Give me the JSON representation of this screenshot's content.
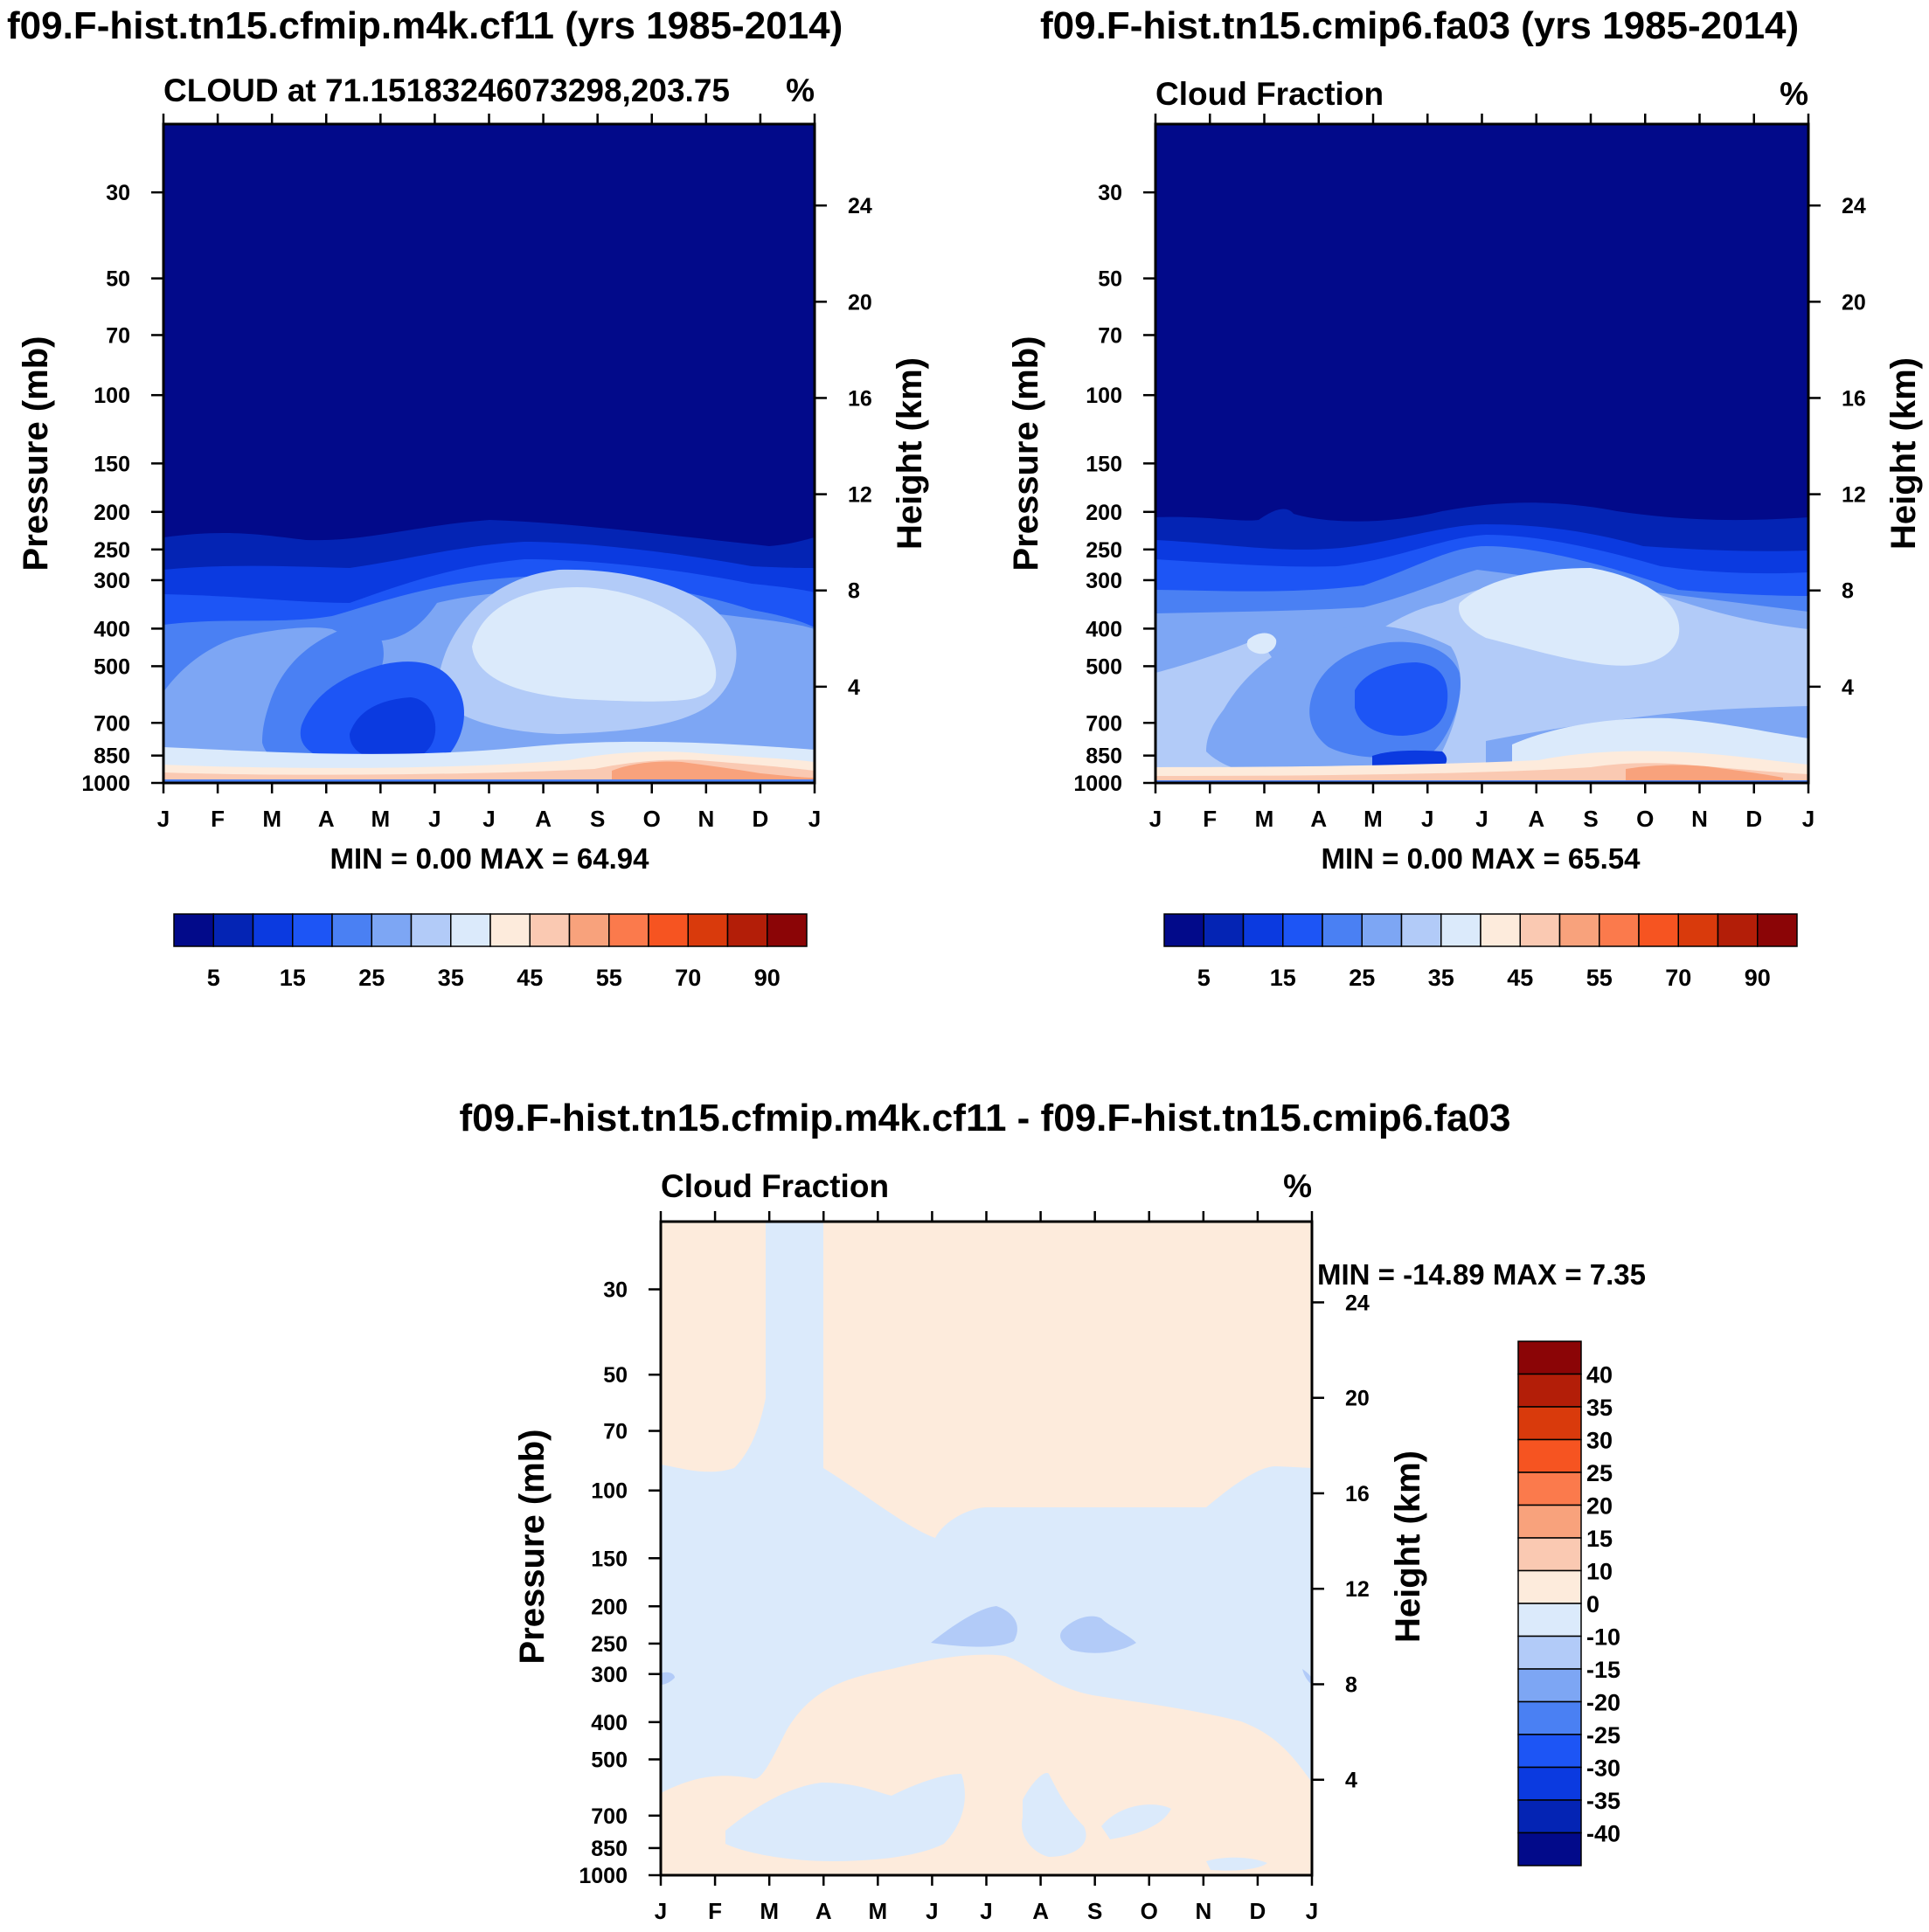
{
  "colors": {
    "scale": [
      "#020a8a",
      "#0424b4",
      "#0b3ae0",
      "#1d55f5",
      "#4a80f3",
      "#7da6f4",
      "#b2cbf8",
      "#dbeafb",
      "#fdebdc",
      "#fac9b2",
      "#f8a27c",
      "#fb7a4c",
      "#f65421",
      "#d93a0c",
      "#b31e08",
      "#8b0506"
    ],
    "diff_scale": [
      "#020a8a",
      "#0424b4",
      "#0b3ae0",
      "#1d55f5",
      "#4a80f3",
      "#7da6f4",
      "#b2cbf8",
      "#dbeafb",
      "#fdebdc",
      "#fac9b2",
      "#f8a27c",
      "#fb7a4c",
      "#f65421",
      "#d93a0c",
      "#b31e08",
      "#8b0506"
    ]
  },
  "panels": {
    "p1": {
      "main_title": "f09.F-hist.tn15.cfmip.m4k.cf11 (yrs 1985-2014)",
      "left_title": "CLOUD at 71.15183246073298,203.75",
      "right_title": "%",
      "ylabel": "Pressure (mb)",
      "y2label": "Height (km)",
      "stats": "MIN =   0.00 MAX =  64.94"
    },
    "p2": {
      "main_title": "f09.F-hist.tn15.cmip6.fa03 (yrs 1985-2014)",
      "left_title": "Cloud Fraction",
      "right_title": "%",
      "ylabel": "Pressure (mb)",
      "y2label": "Height (km)",
      "stats": "MIN =   0.00 MAX =  65.54"
    },
    "p3": {
      "main_title": "f09.F-hist.tn15.cfmip.m4k.cf11 - f09.F-hist.tn15.cmip6.fa03",
      "left_title": "Cloud Fraction",
      "right_title": "%",
      "ylabel": "Pressure (mb)",
      "y2label": "Height (km)",
      "stats": "MIN = -14.89 MAX =   7.35"
    }
  },
  "chart_data": [
    {
      "type": "heatmap",
      "title": "f09.F-hist.tn15.cfmip.m4k.cf11 (yrs 1985-2014)",
      "subtitle": "CLOUD at 71.15183246073298,203.75",
      "units": "%",
      "xlabel": "",
      "ylabel": "Pressure (mb)",
      "y2label": "Height (km)",
      "x_tick_labels": [
        "J",
        "F",
        "M",
        "A",
        "M",
        "J",
        "J",
        "A",
        "S",
        "O",
        "N",
        "D",
        "J"
      ],
      "y_ticks": [
        30,
        50,
        70,
        100,
        150,
        200,
        250,
        300,
        400,
        500,
        700,
        850,
        1000
      ],
      "y2_ticks": [
        4,
        8,
        12,
        16,
        20,
        24
      ],
      "ylim": [
        1000,
        20
      ],
      "min": 0.0,
      "max": 64.94,
      "colorbar_labels": [
        "5",
        "15",
        "25",
        "35",
        "45",
        "55",
        "70",
        "90"
      ],
      "approx_profile": {
        "pressure": [
          20,
          200,
          250,
          300,
          400,
          500,
          700,
          850,
          1000
        ],
        "cloud_fraction_pct": [
          0,
          2,
          12,
          22,
          35,
          28,
          18,
          30,
          55
        ]
      }
    },
    {
      "type": "heatmap",
      "title": "f09.F-hist.tn15.cmip6.fa03 (yrs 1985-2014)",
      "subtitle": "Cloud Fraction",
      "units": "%",
      "ylabel": "Pressure (mb)",
      "y2label": "Height (km)",
      "x_tick_labels": [
        "J",
        "F",
        "M",
        "A",
        "M",
        "J",
        "J",
        "A",
        "S",
        "O",
        "N",
        "D",
        "J"
      ],
      "y_ticks": [
        30,
        50,
        70,
        100,
        150,
        200,
        250,
        300,
        400,
        500,
        700,
        850,
        1000
      ],
      "y2_ticks": [
        4,
        8,
        12,
        16,
        20,
        24
      ],
      "ylim": [
        1000,
        20
      ],
      "min": 0.0,
      "max": 65.54,
      "colorbar_labels": [
        "5",
        "15",
        "25",
        "35",
        "45",
        "55",
        "70",
        "90"
      ],
      "approx_profile": {
        "pressure": [
          20,
          200,
          250,
          300,
          400,
          500,
          700,
          850,
          1000
        ],
        "cloud_fraction_pct": [
          0,
          3,
          14,
          24,
          36,
          30,
          20,
          32,
          56
        ]
      }
    },
    {
      "type": "heatmap",
      "title": "f09.F-hist.tn15.cfmip.m4k.cf11 - f09.F-hist.tn15.cmip6.fa03",
      "subtitle": "Cloud Fraction",
      "units": "%",
      "ylabel": "Pressure (mb)",
      "y2label": "Height (km)",
      "x_tick_labels": [
        "J",
        "F",
        "M",
        "A",
        "M",
        "J",
        "J",
        "A",
        "S",
        "O",
        "N",
        "D",
        "J"
      ],
      "y_ticks": [
        30,
        50,
        70,
        100,
        150,
        200,
        250,
        300,
        400,
        500,
        700,
        850,
        1000
      ],
      "y2_ticks": [
        4,
        8,
        12,
        16,
        20,
        24
      ],
      "ylim": [
        1000,
        20
      ],
      "min": -14.89,
      "max": 7.35,
      "colorbar_labels": [
        "40",
        "35",
        "30",
        "25",
        "20",
        "15",
        "10",
        "0",
        "-10",
        "-15",
        "-20",
        "-25",
        "-30",
        "-35",
        "-40"
      ]
    }
  ]
}
